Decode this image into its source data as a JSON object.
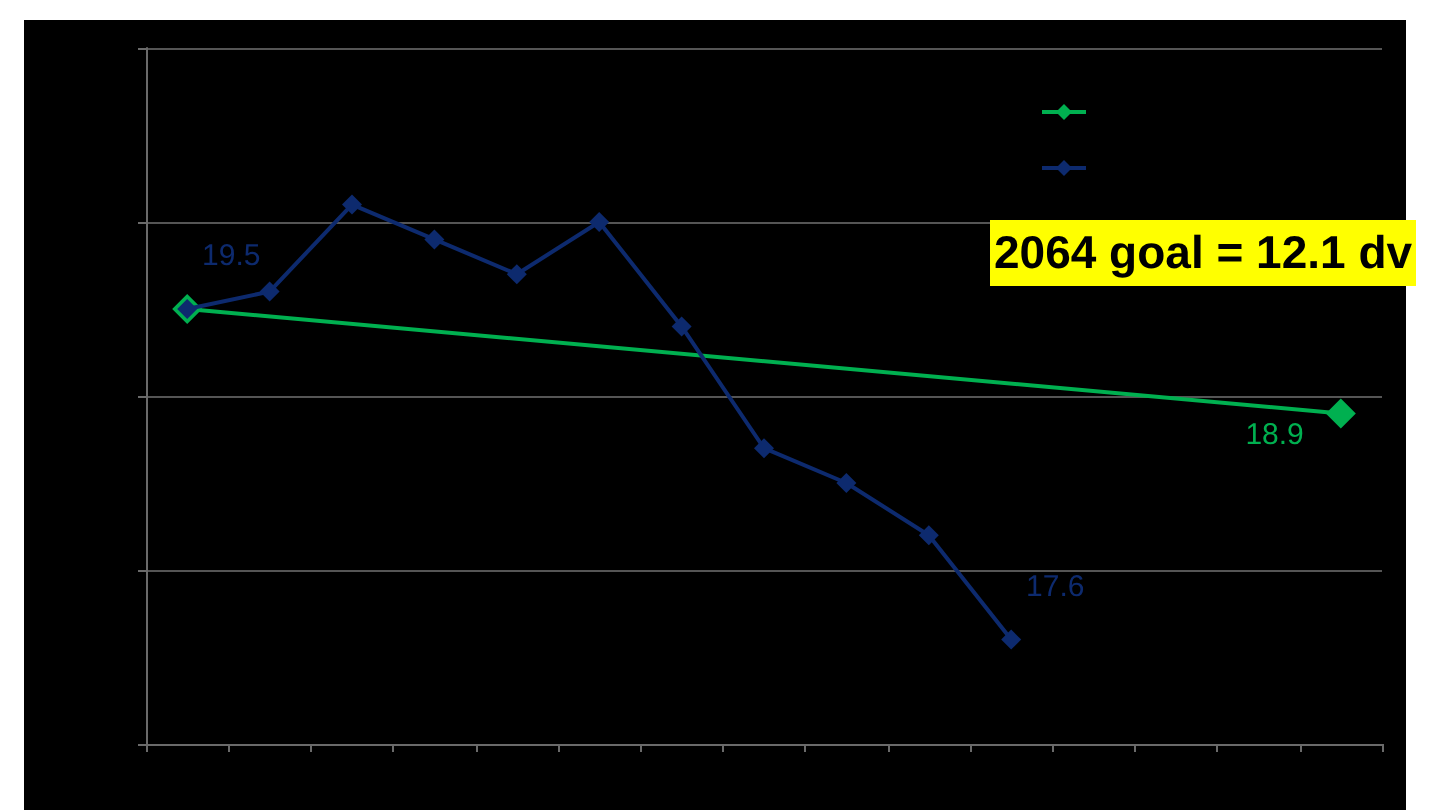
{
  "chart_data": {
    "type": "line",
    "categories": [
      null,
      null,
      null,
      null,
      null,
      null,
      null,
      null,
      null,
      null,
      null,
      null,
      null,
      null,
      null
    ],
    "series": [
      {
        "color": "#00b050",
        "values": [
          19.5,
          null,
          null,
          null,
          null,
          null,
          null,
          null,
          null,
          null,
          null,
          null,
          null,
          null,
          18.9
        ],
        "value_labels": [
          null,
          null,
          null,
          null,
          null,
          null,
          null,
          null,
          null,
          null,
          null,
          null,
          null,
          null,
          "18.9"
        ]
      },
      {
        "color": "#0d2a6e",
        "values": [
          19.5,
          19.6,
          20.1,
          19.9,
          19.7,
          20.0,
          19.4,
          18.7,
          18.5,
          18.2,
          17.6,
          null,
          null,
          null,
          null
        ],
        "value_labels": [
          "19.5",
          null,
          null,
          null,
          null,
          null,
          null,
          null,
          null,
          null,
          "17.6",
          null,
          null,
          null,
          null
        ]
      }
    ],
    "ylim": [
      17,
      21
    ],
    "yticks": [
      {
        "value": 17,
        "label": null
      },
      {
        "value": 18,
        "label": null
      },
      {
        "value": 19,
        "label": null
      },
      {
        "value": 20,
        "label": null
      },
      {
        "value": 21,
        "label": null
      }
    ],
    "grid": "y",
    "marker": "diamond",
    "line_style": "solid",
    "annotations": [
      "2064 goal = 12.1 dv"
    ]
  }
}
